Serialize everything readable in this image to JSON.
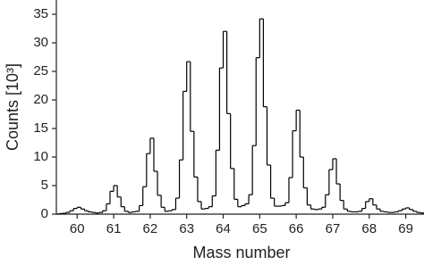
{
  "chart_data": {
    "type": "histogram",
    "xlabel": "Mass number",
    "ylabel": "Counts [10³]",
    "color": "#000000",
    "bins": [
      59.5,
      59.6,
      59.7,
      59.8,
      59.9,
      60.0,
      60.1,
      60.2,
      60.3,
      60.4,
      60.5,
      60.6,
      60.7,
      60.8,
      60.9,
      61.0,
      61.1,
      61.2,
      61.3,
      61.4,
      61.5,
      61.6,
      61.7,
      61.8,
      61.9,
      62.0,
      62.1,
      62.2,
      62.3,
      62.4,
      62.5,
      62.6,
      62.7,
      62.8,
      62.9,
      63.0,
      63.1,
      63.2,
      63.3,
      63.4,
      63.5,
      63.6,
      63.7,
      63.8,
      63.9,
      64.0,
      64.1,
      64.2,
      64.3,
      64.4,
      64.5,
      64.6,
      64.7,
      64.8,
      64.9,
      65.0,
      65.1,
      65.2,
      65.3,
      65.4,
      65.5,
      65.6,
      65.7,
      65.8,
      65.9,
      66.0,
      66.1,
      66.2,
      66.3,
      66.4,
      66.5,
      66.6,
      66.7,
      66.8,
      66.9,
      67.0,
      67.1,
      67.2,
      67.3,
      67.4,
      67.5,
      67.6,
      67.7,
      67.8,
      67.9,
      68.0,
      68.1,
      68.2,
      68.3,
      68.4,
      68.5,
      68.6,
      68.7,
      68.8,
      68.9,
      69.0,
      69.1,
      69.2,
      69.3,
      69.4,
      69.5
    ],
    "counts": [
      0.1,
      0.15,
      0.3,
      0.6,
      1.0,
      1.2,
      0.9,
      0.6,
      0.4,
      0.3,
      0.2,
      0.3,
      0.6,
      1.8,
      4.0,
      5.0,
      3.0,
      1.3,
      0.5,
      0.3,
      0.4,
      0.5,
      1.5,
      4.8,
      10.6,
      13.3,
      7.5,
      3.3,
      1.2,
      0.5,
      0.6,
      0.8,
      2.8,
      9.5,
      21.5,
      26.7,
      14.5,
      6.5,
      2.2,
      0.9,
      1.0,
      1.3,
      3.2,
      11.2,
      25.6,
      32.0,
      17.6,
      8.0,
      2.6,
      1.3,
      1.5,
      1.8,
      3.4,
      12.0,
      27.4,
      34.2,
      18.8,
      8.6,
      2.8,
      1.4,
      1.4,
      1.5,
      2.0,
      6.4,
      14.6,
      18.2,
      10.0,
      4.6,
      1.6,
      0.9,
      0.8,
      0.9,
      1.2,
      3.4,
      7.8,
      9.7,
      5.3,
      2.4,
      0.9,
      0.5,
      0.4,
      0.4,
      0.5,
      1.0,
      2.2,
      2.7,
      1.6,
      0.9,
      0.5,
      0.4,
      0.3,
      0.3,
      0.4,
      0.6,
      0.9,
      1.1,
      0.8,
      0.5,
      0.3,
      0.2
    ],
    "xlim": [
      59.43,
      69.5
    ],
    "ylim": [
      0,
      37.5
    ],
    "xticks": [
      60,
      61,
      62,
      63,
      64,
      65,
      66,
      67,
      68,
      69
    ],
    "yticks": [
      0,
      5,
      10,
      15,
      20,
      25,
      30,
      35
    ]
  }
}
